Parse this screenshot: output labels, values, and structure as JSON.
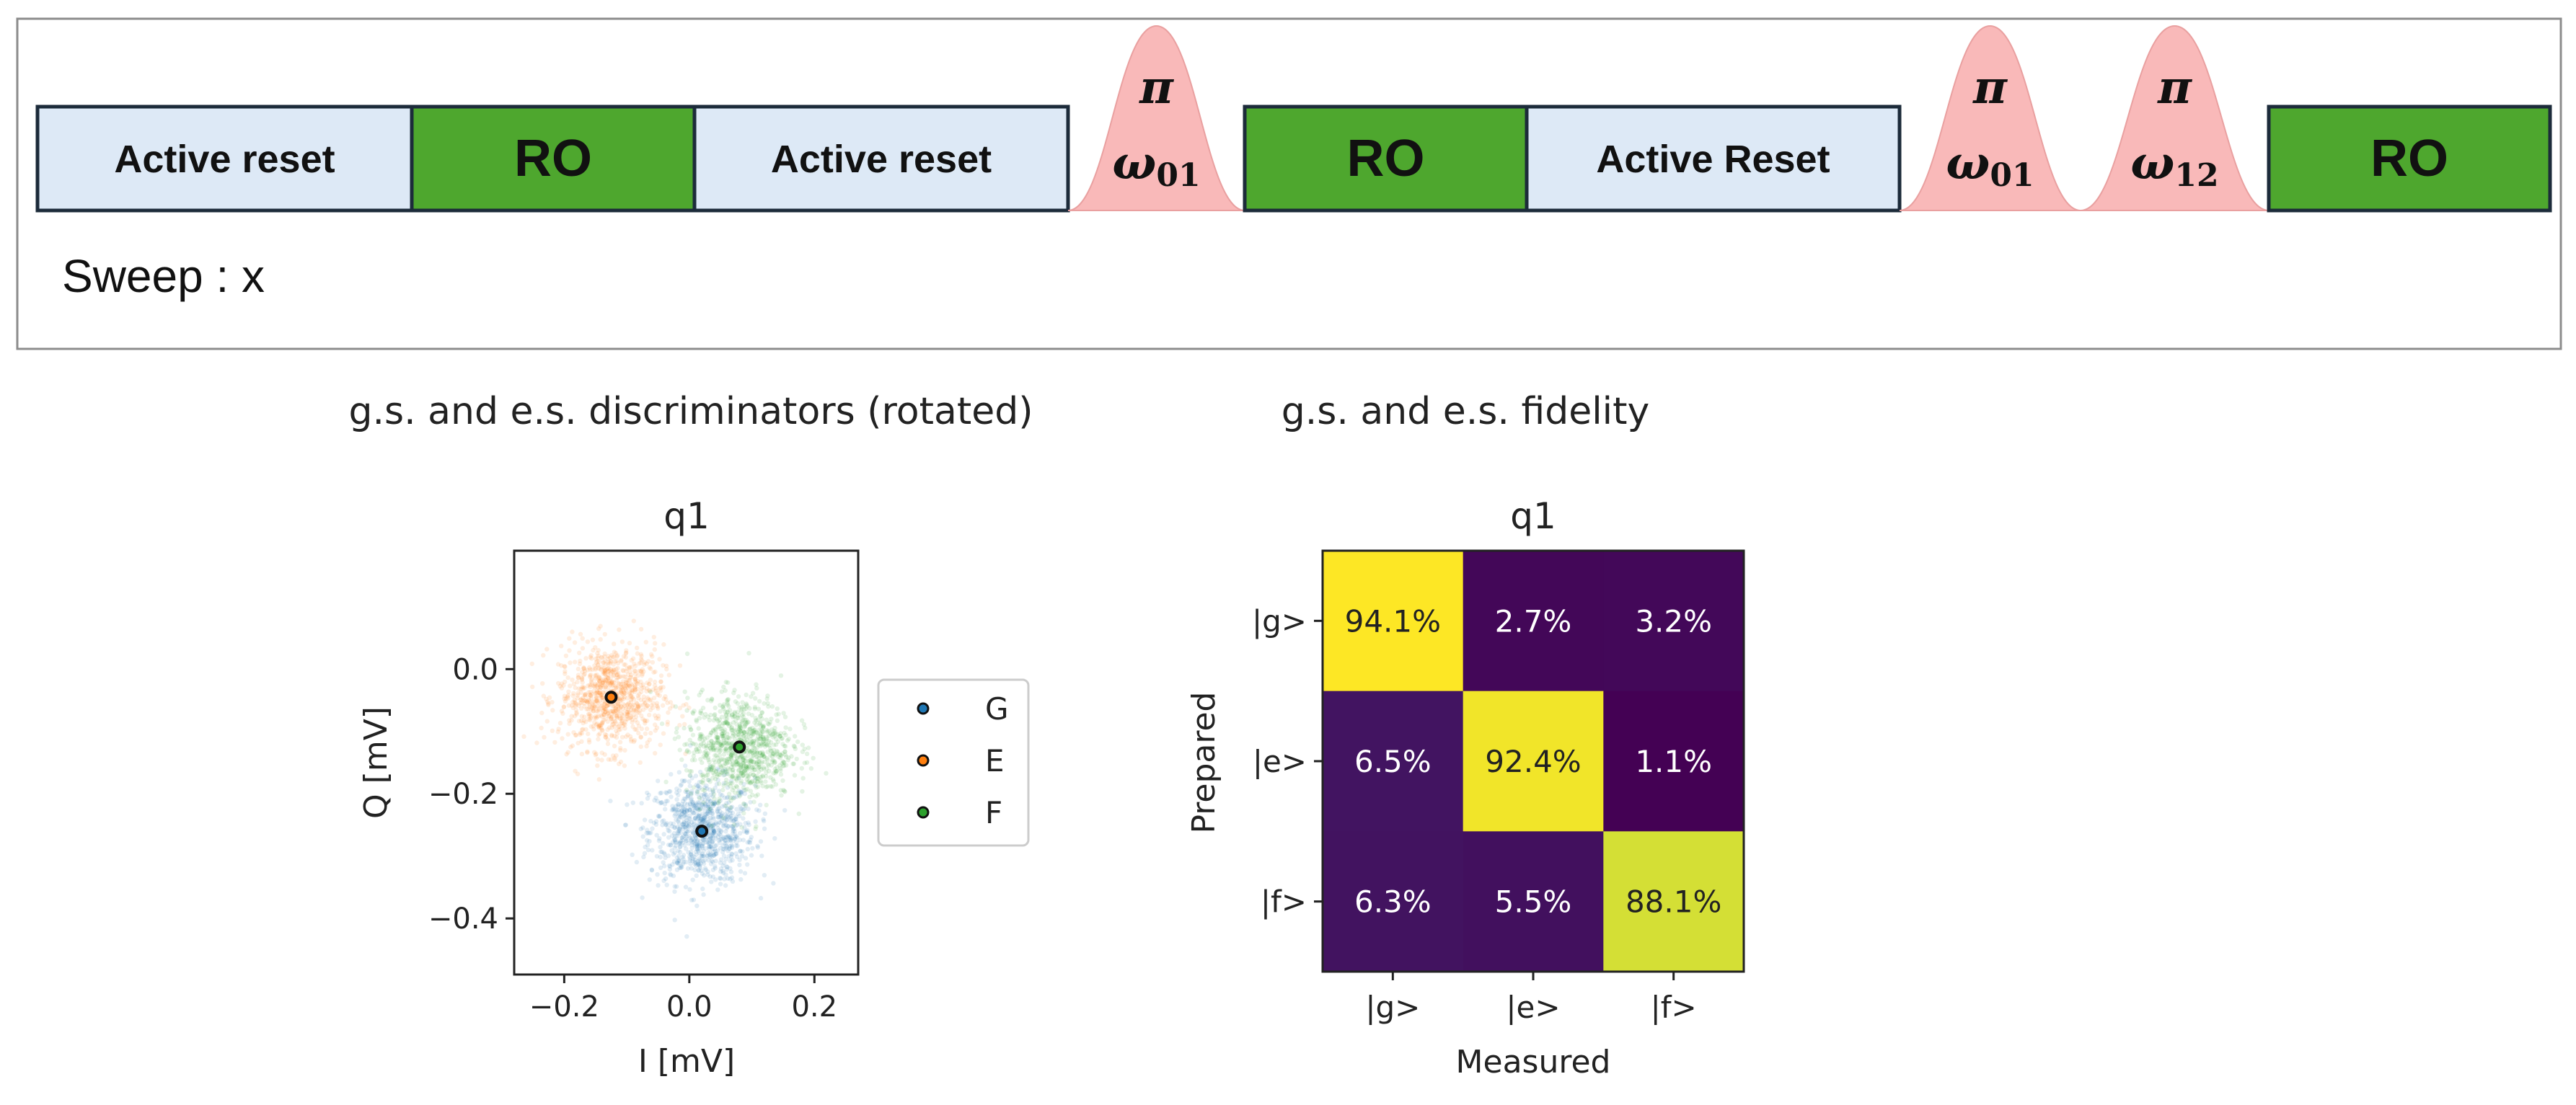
{
  "sequence": {
    "blocks": [
      {
        "label": "Active reset",
        "kind": "reset"
      },
      {
        "label": "RO",
        "kind": "ro"
      },
      {
        "label": "Active reset",
        "kind": "reset"
      },
      {
        "label": "RO",
        "kind": "ro"
      },
      {
        "label": "Active Reset",
        "kind": "reset"
      },
      {
        "label": "RO",
        "kind": "ro"
      }
    ],
    "pulses": [
      {
        "symbol": "π",
        "freq": "ω",
        "sub": "01"
      },
      {
        "symbol": "π",
        "freq": "ω",
        "sub": "01"
      },
      {
        "symbol": "π",
        "freq": "ω",
        "sub": "12"
      }
    ],
    "sweep_label": "Sweep : x",
    "colors": {
      "reset": "#dde9f6",
      "ro": "#4ea72e",
      "pulse": "#f9b9b9",
      "border": "#1c2b3a",
      "frame": "#8c8c8c"
    }
  },
  "chart_data": [
    {
      "type": "scatter",
      "suptitle": "g.s. and e.s. discriminators (rotated)",
      "title": "q1",
      "xlabel": "I [mV]",
      "ylabel": "Q [mV]",
      "xlim": [
        -0.28,
        0.27
      ],
      "ylim": [
        -0.49,
        0.19
      ],
      "xticks": [
        -0.2,
        0.0,
        0.2
      ],
      "xtick_labels": [
        "−0.2",
        "0.0",
        "0.2"
      ],
      "yticks": [
        0.0,
        -0.2,
        -0.4
      ],
      "ytick_labels": [
        "0.0",
        "−0.2",
        "−0.4"
      ],
      "legend_position": "right-outside",
      "series": [
        {
          "name": "G",
          "color": "#1f77b4",
          "center": [
            0.02,
            -0.26
          ],
          "spread": 0.042
        },
        {
          "name": "E",
          "color": "#ff7f0e",
          "center": [
            -0.125,
            -0.045
          ],
          "spread": 0.042
        },
        {
          "name": "F",
          "color": "#2ca02c",
          "center": [
            0.08,
            -0.125
          ],
          "spread": 0.042
        }
      ]
    },
    {
      "type": "heatmap",
      "suptitle": "g.s. and e.s. fidelity",
      "title": "q1",
      "xlabel": "Measured",
      "ylabel": "Prepared",
      "x_categories": [
        "|g>",
        "|e>",
        "|f>"
      ],
      "y_categories": [
        "|g>",
        "|e>",
        "|f>"
      ],
      "values": [
        [
          94.1,
          2.7,
          3.2
        ],
        [
          6.5,
          92.4,
          1.1
        ],
        [
          6.3,
          5.5,
          88.1
        ]
      ],
      "cell_labels": [
        [
          "94.1%",
          "2.7%",
          "3.2%"
        ],
        [
          "6.5%",
          "92.4%",
          "1.1%"
        ],
        [
          "6.3%",
          "5.5%",
          "88.1%"
        ]
      ],
      "colormap": "viridis"
    }
  ]
}
